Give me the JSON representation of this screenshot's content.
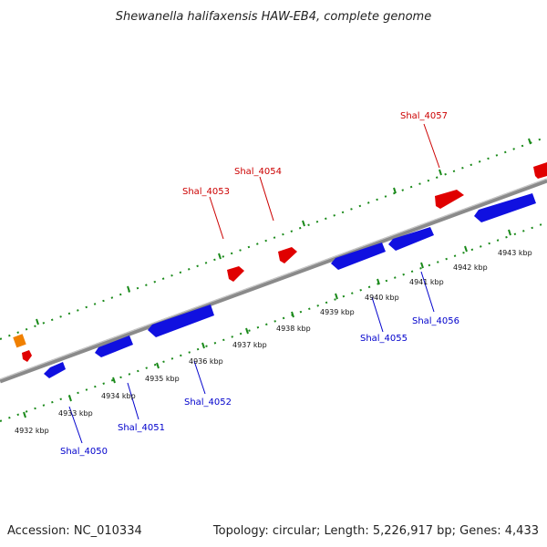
{
  "title": "Shewanella halifaxensis HAW-EB4, complete genome",
  "footer": {
    "accession": "Accession: NC_010334",
    "summary": "Topology: circular; Length: 5,226,917 bp; Genes: 4,433"
  },
  "colors": {
    "backbone": "#8a8a8a",
    "tick": "#1a8a1a",
    "forward_gene": "#e00000",
    "reverse_gene": "#1010e0",
    "rna_gene": "#f08000",
    "forward_label": "#cc0000",
    "reverse_label": "#0000cc"
  },
  "scale_labels": [
    "4932 kbp",
    "4933 kbp",
    "4934 kbp",
    "4935 kbp",
    "4936 kbp",
    "4937 kbp",
    "4938 kbp",
    "4939 kbp",
    "4940 kbp",
    "4941 kbp",
    "4942 kbp",
    "4943 kbp"
  ],
  "gene_labels": {
    "forward": [
      "Shal_4053",
      "Shal_4054",
      "Shal_4057"
    ],
    "reverse": [
      "Shal_4050",
      "Shal_4051",
      "Shal_4052",
      "Shal_4055",
      "Shal_4056"
    ]
  }
}
